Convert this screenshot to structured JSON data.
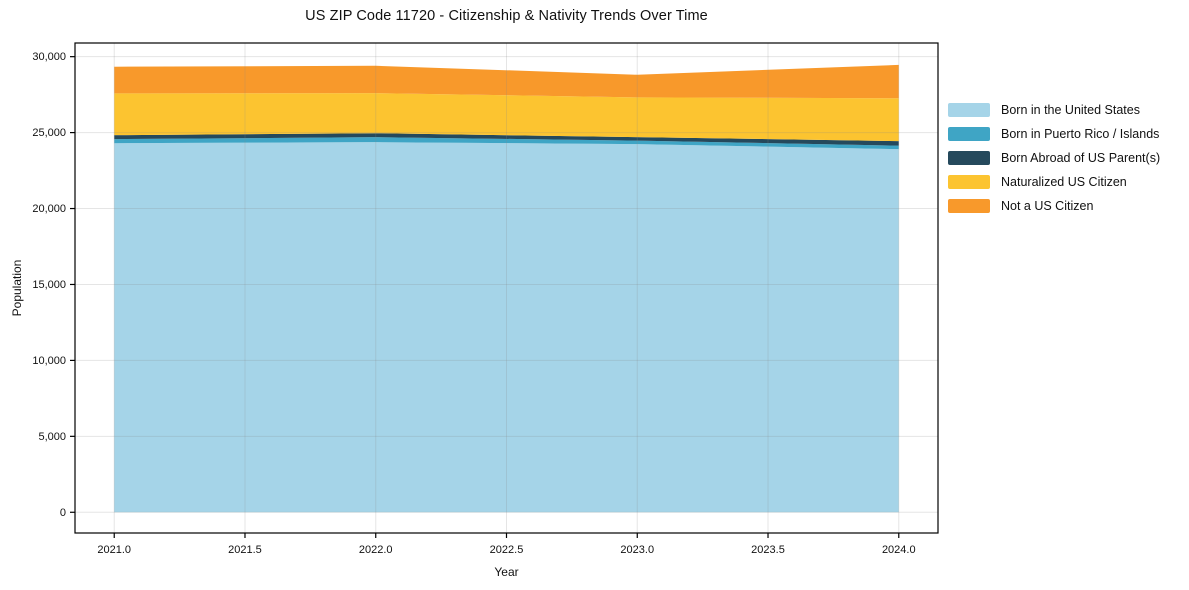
{
  "chart_data": {
    "type": "area",
    "stacked": true,
    "title": "US ZIP Code 11720 - Citizenship & Nativity Trends Over Time",
    "xlabel": "Year",
    "ylabel": "Population",
    "x": [
      2021,
      2022,
      2023,
      2024
    ],
    "series": [
      {
        "name": "Born in the United States",
        "color": "#a5d4e8",
        "values": [
          24300,
          24370,
          24240,
          23910
        ]
      },
      {
        "name": "Born in Puerto Rico / Islands",
        "color": "#3fa5c5",
        "values": [
          270,
          330,
          230,
          230
        ]
      },
      {
        "name": "Born Abroad of US Parent(s)",
        "color": "#25495c",
        "values": [
          260,
          260,
          230,
          300
        ]
      },
      {
        "name": "Naturalized US Citizen",
        "color": "#fcc430",
        "values": [
          2750,
          2640,
          2620,
          2820
        ]
      },
      {
        "name": "Not a US Citizen",
        "color": "#f8992b",
        "values": [
          1760,
          1800,
          1490,
          2200
        ]
      }
    ],
    "stacked_totals": [
      29340,
      29400,
      28810,
      29460
    ],
    "xlim": [
      2020.85,
      2024.15
    ],
    "ylim": [
      -1365,
      30900
    ],
    "xticks": [
      2021.0,
      2021.5,
      2022.0,
      2022.5,
      2023.0,
      2023.5,
      2024.0
    ],
    "xtick_labels": [
      "2021.0",
      "2021.5",
      "2022.0",
      "2022.5",
      "2023.0",
      "2023.5",
      "2024.0"
    ],
    "yticks": [
      0,
      5000,
      10000,
      15000,
      20000,
      25000,
      30000
    ],
    "ytick_labels": [
      "0",
      "5,000",
      "10,000",
      "15,000",
      "20,000",
      "25,000",
      "30,000"
    ],
    "grid": true,
    "legend_position": "right of plot, top",
    "axis_color": "#000000",
    "grid_color": "#8a8a8a",
    "tick_label_color": "#111111"
  }
}
